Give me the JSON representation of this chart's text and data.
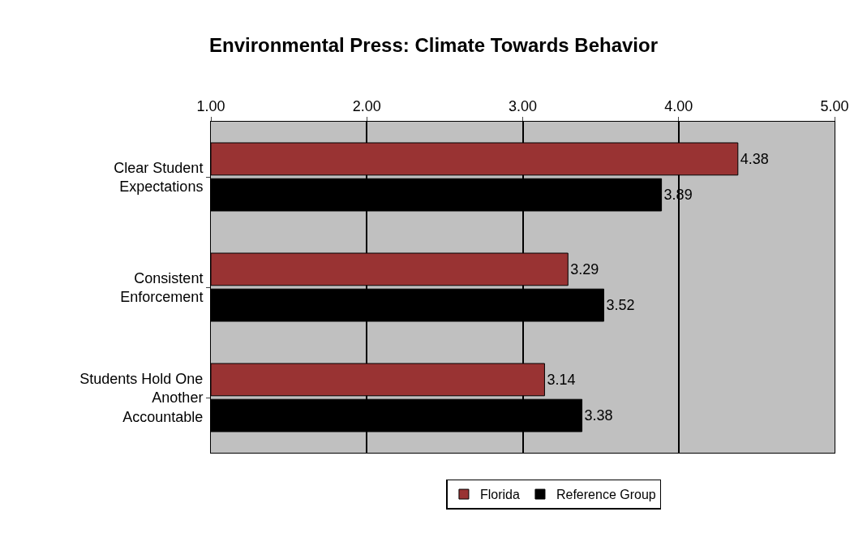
{
  "chart_data": {
    "type": "bar",
    "orientation": "horizontal",
    "title": "Environmental Press: Climate Towards Behavior",
    "categories": [
      "Clear Student Expectations",
      "Consistent Enforcement",
      "Students Hold One Another Accountable"
    ],
    "series": [
      {
        "name": "Florida",
        "color": "#993333",
        "values": [
          4.38,
          3.29,
          3.14
        ]
      },
      {
        "name": "Reference Group",
        "color": "#000000",
        "values": [
          3.89,
          3.52,
          3.38
        ]
      }
    ],
    "xlim": [
      1,
      5
    ],
    "xticks": [
      {
        "value": 1,
        "label": "1.00"
      },
      {
        "value": 2,
        "label": "2.00"
      },
      {
        "value": 3,
        "label": "3.00"
      },
      {
        "value": 4,
        "label": "4.00"
      },
      {
        "value": 5,
        "label": "5.00"
      }
    ],
    "data_labels": true,
    "grid": "x",
    "legend": "bottom"
  }
}
